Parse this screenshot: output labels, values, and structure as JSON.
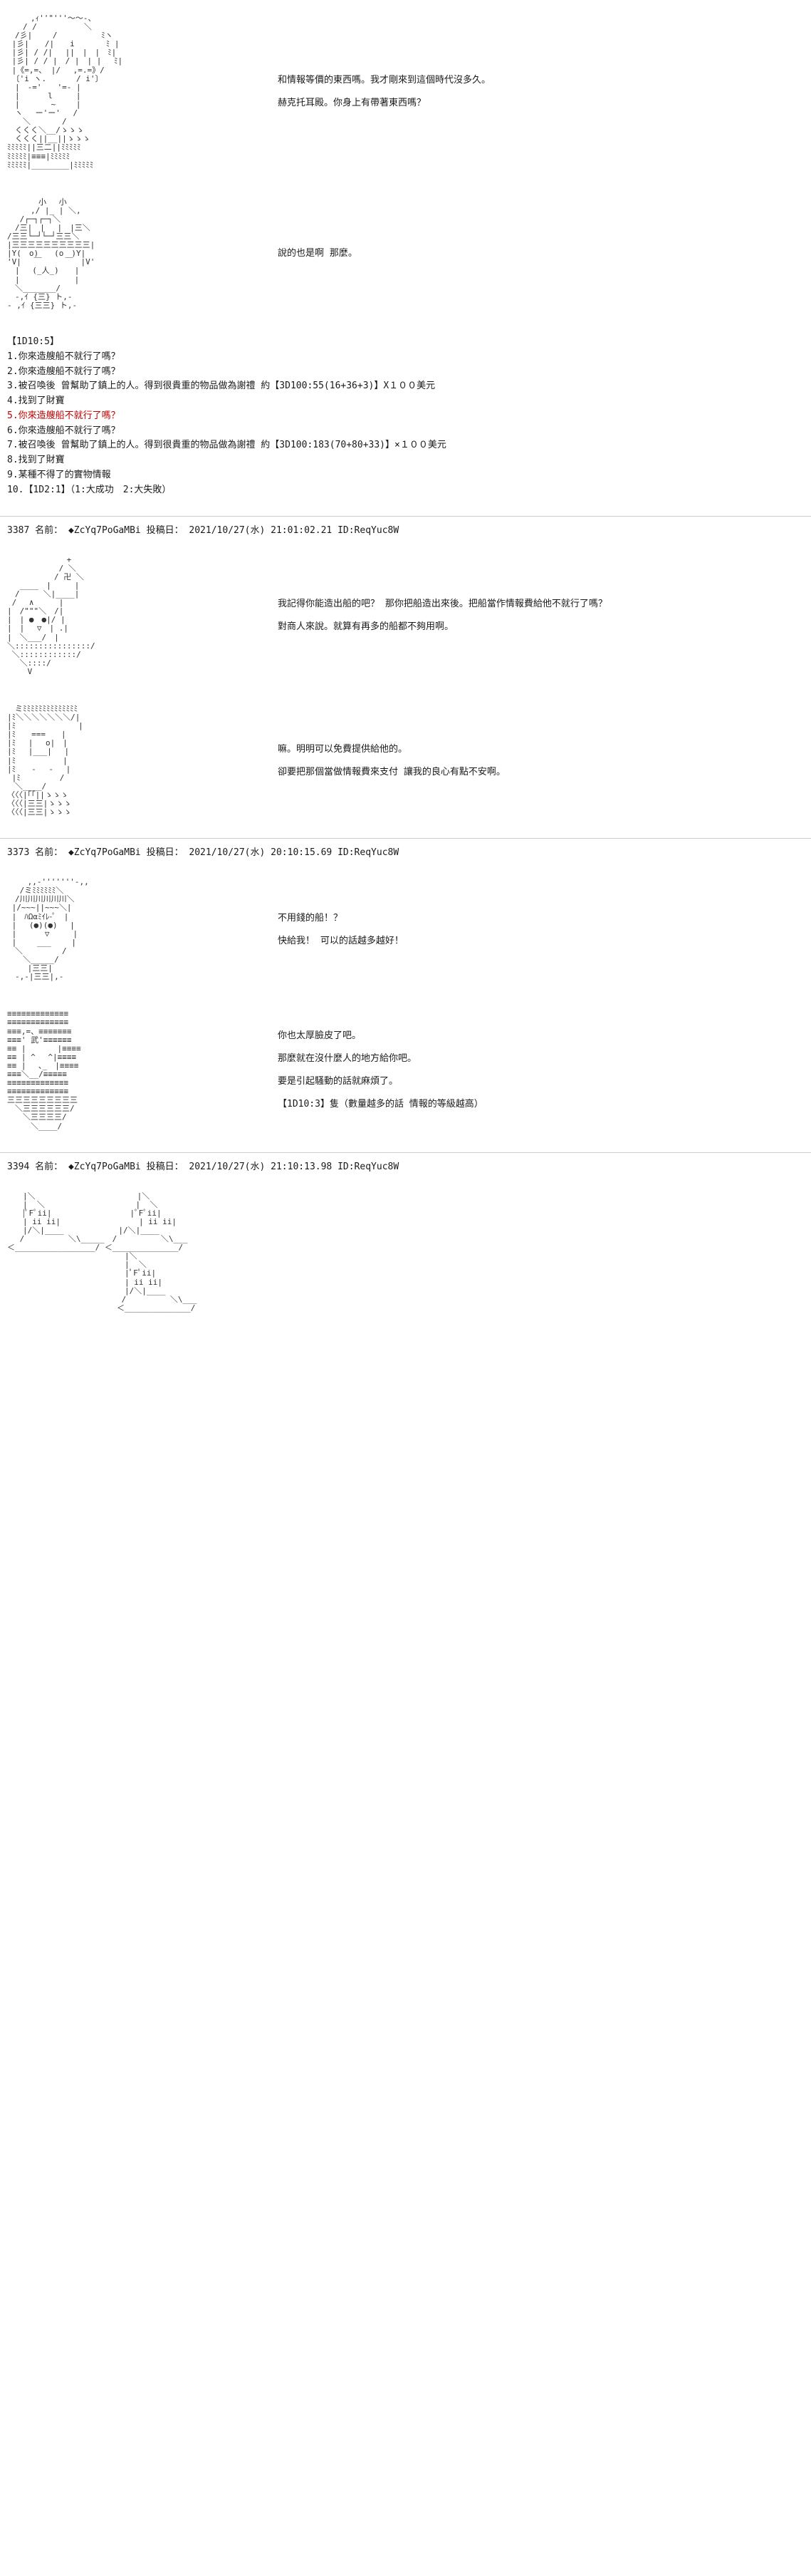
{
  "panels": [
    {
      "art": "　　　,ｨ''\"'''～～-、\n　　/ /　　　　　　＼\n　/彡|　　 /　　　　　 ﾐヽ\n |彡|　　/|　　i　　　　ﾐ |\n |彡| / /|　 ||　|　|　ﾐ|\n |彡| / / |　/ |　| |　 ﾐ|\n |《=,=、 |/　 ,=.=》/\n 〔'i ヽ. 　 　 / i'〕\n　|　-='　　'=- |\n　|　　　 l　　　|\n　|　　　　~　　 |\n　ヽ　 ー'ー'　 /\n　　＼　　　　/\n　くくく＼__/ゝゝゝ\n　くくく||__||ゝゝゝ\nﾐﾐﾐﾐﾐ||三二||ﾐﾐﾐﾐﾐ\nﾐﾐﾐﾐﾐ|≡≡≡|ﾐﾐﾐﾐﾐ\nﾐﾐﾐﾐﾐ|________|ﾐﾐﾐﾐﾐ",
      "lines": [
        "和情報等價的東西嗎。我才剛來到這個時代沒多久。",
        "赫克托耳殿。你身上有帶著東西嗎？"
      ]
    },
    {
      "art": "　　　　小　 小\n　　　,/ |_ | ＼,\n　 /┌─┐┌─┐＼\n　/三|　|　 |　|三＼\n/三三└─┘└─┘三三＼\n|三三三三三三三三三三|\n|Y(　o)　　(o　)Y|\n'V|　 ￣　　　￣　|V'\n　|　 (_人_)　　|\n　|　　　　　　　|\n　＼_______/\n　-,ｲ {三} ト,-\n- ,ｲ {三三} ト,-",
      "lines": [
        "說的也是啊 那麼。"
      ]
    }
  ],
  "dice1": {
    "title": "【1D10:5】",
    "lines": [
      {
        "text": "1.你來造艘船不就行了嗎？",
        "hl": false
      },
      {
        "text": "2.你來造艘船不就行了嗎？",
        "hl": false
      },
      {
        "text": "3.被召喚後 曾幫助了鎮上的人。得到很貴重的物品做為謝禮 約【3D100:55(16+36+3)】X１００美元",
        "hl": false
      },
      {
        "text": "4.找到了財寶",
        "hl": false
      },
      {
        "text": "5.你來造艘船不就行了嗎？",
        "hl": true
      },
      {
        "text": "6.你來造艘船不就行了嗎？",
        "hl": false
      },
      {
        "text": "7.被召喚後 曾幫助了鎮上的人。得到很貴重的物品做為謝禮 約【3D100:183(70+80+33)】×１００美元",
        "hl": false
      },
      {
        "text": "8.找到了財寶",
        "hl": false
      },
      {
        "text": "9.某種不得了的實物情報",
        "hl": false
      },
      {
        "text": "10.【1D2:1】（1:大成功　2:大失敗）",
        "hl": false
      }
    ]
  },
  "meta1": {
    "num": "3387",
    "label": "名前：",
    "trip": "◆ZcYq7PoGaMBi",
    "dateLabel": "投稿日：",
    "date": "2021/10/27(水) 21:01:02.21",
    "id": "ID:ReqYuc8W"
  },
  "panels2": [
    {
      "art": "　　　　　　　 +\n　　　　　　 / ＼\n　　　　　　/ 卍 ＼\n　 ____　|　　　|\n　/　　　＼|____|\n /　 ∧ 　　 |\n|　/\"\"\"＼　/|\n|　| ●　●|/ |\n|　|　 ▽　| .|\n|　＼___/　|\n＼::::::::::::::::/\n ＼::::::::::::/\n　 ＼::::/\n　　 V",
      "lines": [
        "我記得你能造出船的吧？ 那你把船造出來後。把船當作情報費給他不就行了嗎？",
        "對商人來說。就算有再多的船都不夠用啊。"
      ]
    },
    {
      "art": "　ミﾐﾐﾐﾐﾐﾐﾐﾐﾐﾐﾐﾐﾐﾐ\n|ﾐ＼＼＼＼＼＼＼/|\n|ﾐ　　　　　　　　|\n|ﾐ　　===　　|\n|ﾐ　 |　 o|　|\n|ﾐ　 |___|　 |\n|ﾐ　　　　　　|\n|ﾐ　　-　 -　 |\n |ﾐ　　　　　/\n　＼____/\n〈〈〈|｢｢||ゝゝゝ\n〈〈〈|三三|ゝゝゝ\n〈〈〈|三三|ゝゝゝ",
      "lines": [
        "嘛。明明可以免費提供給他的。",
        "卻要把那個當做情報費來支付 讓我的良心有點不安啊。"
      ]
    }
  ],
  "meta2": {
    "num": "3373",
    "label": "名前：",
    "trip": "◆ZcYq7PoGaMBi",
    "dateLabel": "投稿日：",
    "date": "2021/10/27(水) 20:10:15.69",
    "id": "ID:ReqYuc8W"
  },
  "panels3": [
    {
      "art": "　　 ,,-'''''''-,,\n　 /ミﾐﾐﾐﾐﾐﾐ＼\n　/川川川川川川＼\n |/~~~||~~~＼|\n |　ﾊΩαﾐｲﾚ-ﾟ　|\n |　 (●)(●)　 |\n |　　 　▽　　　|\n |　　 ___　　 |\n　＼　　　　　/\n　　＼_____/\n　　 |三三|\n　-,-|三三|,-",
      "lines": [
        "不用錢的船！？",
        "快給我！ 可以的話越多越好！"
      ]
    },
    {
      "art": "≡≡≡≡≡≡≡≡≡≡≡≡≡\n≡≡≡≡≡≡≡≡≡≡≡≡≡\n≡≡≡,=、≡≡≡≡≡≡≡\n≡≡≡' 武'≡≡≡≡≡≡\n≡≡ |　　　　|≡≡≡≡\n≡≡ | ^　 ^|≡≡≡≡\n≡≡ |　 ､_　|≡≡≡≡\n≡≡≡＼__/≡≡≡≡≡\n≡≡≡≡≡≡≡≡≡≡≡≡≡\n≡≡≡≡≡≡≡≡≡≡≡≡≡\n三三三三三三三三三\n　＼三三三三三三/\n　　＼三三三三/\n　　　＼____/",
      "lines": [
        "你也太厚臉皮了吧。",
        "那麼就在沒什麼人的地方給你吧。",
        "要是引起騷動的話就麻煩了。",
        "【1D10:3】隻（數量越多的話 情報的等級越高）"
      ]
    }
  ],
  "meta3": {
    "num": "3394",
    "label": "名前：",
    "trip": "◆ZcYq7PoGaMBi",
    "dateLabel": "投稿日：",
    "date": "2021/10/27(水) 21:10:13.98",
    "id": "ID:ReqYuc8W"
  },
  "finalArt": "　　|＼　　　　　　　　　　　　　|＼\n　　|  ＼　　　　　　　　　　　 |  ＼\n　　|ﾟFﾟii|　　　　　　　　　　|ﾟFﾟii|\n　　| ii ii|　　　　　　　　　　| ii ii|\n　　|/＼|____　　　　　　　|/＼|____\n　 /　　　　　 ＼\\_____　/　　　　　 ＼\\___\n＜_________________/ ＜______________/\n　　　　　　　　　　　　　　　|＼\n　　　　　　　　　　　　　　　|  ＼\n　　　　　　　　　　　　　　　|ﾟFﾟii|\n　　　　　　　　　　　　　　　| ii ii|\n　　　　　　　　　　　　　　　|/＼|____\n　　　　　　　　　　　　　　 /　　　　　 ＼\\___\n　　　　　　　　　　　　　　＜______________/"
}
